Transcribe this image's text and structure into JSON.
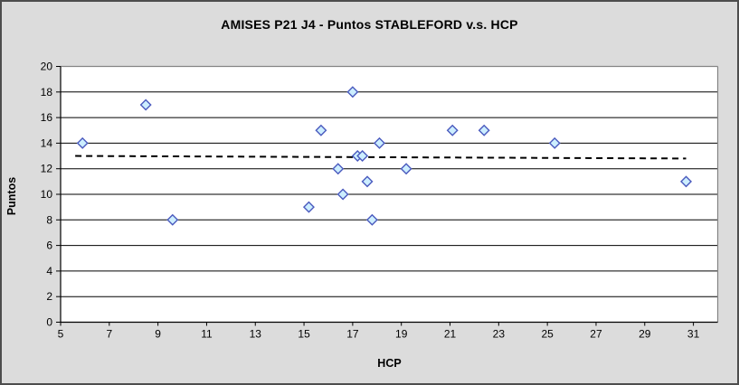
{
  "window": {
    "background_color": "#dcdcdc",
    "border_color": "#4d4d4d"
  },
  "chart_data": {
    "type": "scatter",
    "title": "AMISES P21 J4 - Puntos STABLEFORD v.s. HCP",
    "xlabel": "HCP",
    "ylabel": "Puntos",
    "xlim": [
      5,
      32
    ],
    "ylim": [
      0,
      20
    ],
    "x_ticks": [
      5,
      7,
      9,
      11,
      13,
      15,
      17,
      19,
      21,
      23,
      25,
      27,
      29,
      31
    ],
    "y_ticks": [
      0,
      2,
      4,
      6,
      8,
      10,
      12,
      14,
      16,
      18,
      20
    ],
    "grid": "horizontal-only",
    "legend_position": "none",
    "series": [
      {
        "name": "Puntos STABLEFORD vs HCP",
        "marker_shape": "diamond",
        "points_xy": [
          [
            5.9,
            14
          ],
          [
            8.5,
            17
          ],
          [
            9.6,
            8
          ],
          [
            15.2,
            9
          ],
          [
            15.7,
            15
          ],
          [
            16.4,
            12
          ],
          [
            16.6,
            10
          ],
          [
            17.0,
            18
          ],
          [
            17.2,
            13
          ],
          [
            17.4,
            13
          ],
          [
            17.6,
            11
          ],
          [
            17.8,
            8
          ],
          [
            18.1,
            14
          ],
          [
            19.2,
            12
          ],
          [
            21.1,
            15
          ],
          [
            22.4,
            15
          ],
          [
            25.3,
            14
          ],
          [
            30.7,
            11
          ]
        ]
      }
    ],
    "trendline": {
      "type": "linear",
      "style": "dashed",
      "start": {
        "x": 5.6,
        "y": 13.0
      },
      "end": {
        "x": 30.7,
        "y": 12.8
      }
    },
    "colors": {
      "plot_background": "#ffffff",
      "gridline": "#000000",
      "axis_line": "#000000",
      "plot_border": "#848484",
      "marker_fill": "#cceeff",
      "marker_stroke": "#4a5abe",
      "trendline": "#000000",
      "tick_label": "#000000"
    }
  }
}
